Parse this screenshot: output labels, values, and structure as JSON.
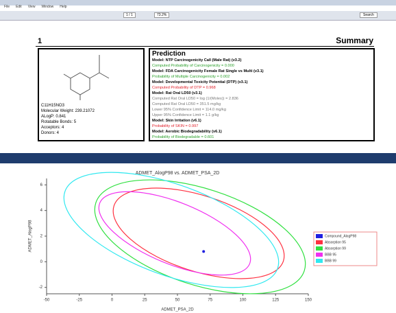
{
  "viewer": {
    "menu": [
      "File",
      "Edit",
      "View",
      "Window",
      "Help"
    ],
    "page_box": "1 / 1",
    "zoom": "73.2%",
    "search": "Search"
  },
  "report": {
    "page_number": "1",
    "title": "Summary",
    "molecule": {
      "formula": "C11H15NO3",
      "properties": [
        "Molecular Weight: 239.21072",
        "ALogP: 0.841",
        "Rotatable Bonds: 5",
        "Acceptors: 4",
        "Donors: 4"
      ]
    },
    "prediction": {
      "heading": "Prediction",
      "lines": [
        {
          "text": "Model: NTP Carcinogenicity Call (Male Rat) (v3.2)",
          "style": "model"
        },
        {
          "text": "Computed Probability of Carcinogenicity = 0.000",
          "style": "good"
        },
        {
          "text": "Model: FDA Carcinogenicity Female Rat Single vs Multi (v3.1)",
          "style": "model"
        },
        {
          "text": "Probability of Multiple Carcinogenicity = 0.002",
          "style": "good"
        },
        {
          "text": "Model: Developmental Toxicity Potential (DTP) (v3.1)",
          "style": "model"
        },
        {
          "text": "Computed Probability of DTP = 0.968",
          "style": "bad"
        },
        {
          "text": "Model: Rat Oral LD50 (v3.1)",
          "style": "model"
        },
        {
          "text": "Computed Rat Oral LD50 = log (1/(Moles)) = 2.836",
          "style": "info"
        },
        {
          "text": "Computed Rat Oral LD50 = 351.5 mg/kg",
          "style": "info"
        },
        {
          "text": "Lower 95% Confidence Limit = 114.0 mg/kg",
          "style": "info"
        },
        {
          "text": "Upper 95% Confidence Limit = 1.1 g/kg",
          "style": "info"
        },
        {
          "text": "Model: Skin Irritation (v6.1)",
          "style": "model"
        },
        {
          "text": "Probability of SKIN = 0.997",
          "style": "bad"
        },
        {
          "text": "Model: Aerobic Biodegradability (v6.1)",
          "style": "model"
        },
        {
          "text": "Probability of Biodegradable = 0.601",
          "style": "good"
        }
      ]
    }
  },
  "chart_data": {
    "type": "scatter",
    "title": "ADMET_AlogP98 vs. ADMET_PSA_2D",
    "x_label": "ADMET_PSA_2D",
    "y_label": "ADMET_AlogP98",
    "xlim": [
      -50,
      150
    ],
    "xticks": [
      -50,
      -25,
      0,
      25,
      50,
      75,
      100,
      125,
      150
    ],
    "ylim": [
      -2.5,
      6.5
    ],
    "yticks": [
      -2,
      0,
      2,
      4,
      6
    ],
    "series": [
      {
        "name": "Compound_AlogP98",
        "color": "#2020e0",
        "x": [
          70
        ],
        "values": [
          0.8
        ]
      }
    ],
    "ellipses": [
      {
        "name": "Absorption 95",
        "color": "#ff3040"
      },
      {
        "name": "Absorption 99",
        "color": "#30e040"
      },
      {
        "name": "BBB 95",
        "color": "#f030f0"
      },
      {
        "name": "BBB 99",
        "color": "#30e8f0"
      }
    ],
    "legend": "right"
  }
}
